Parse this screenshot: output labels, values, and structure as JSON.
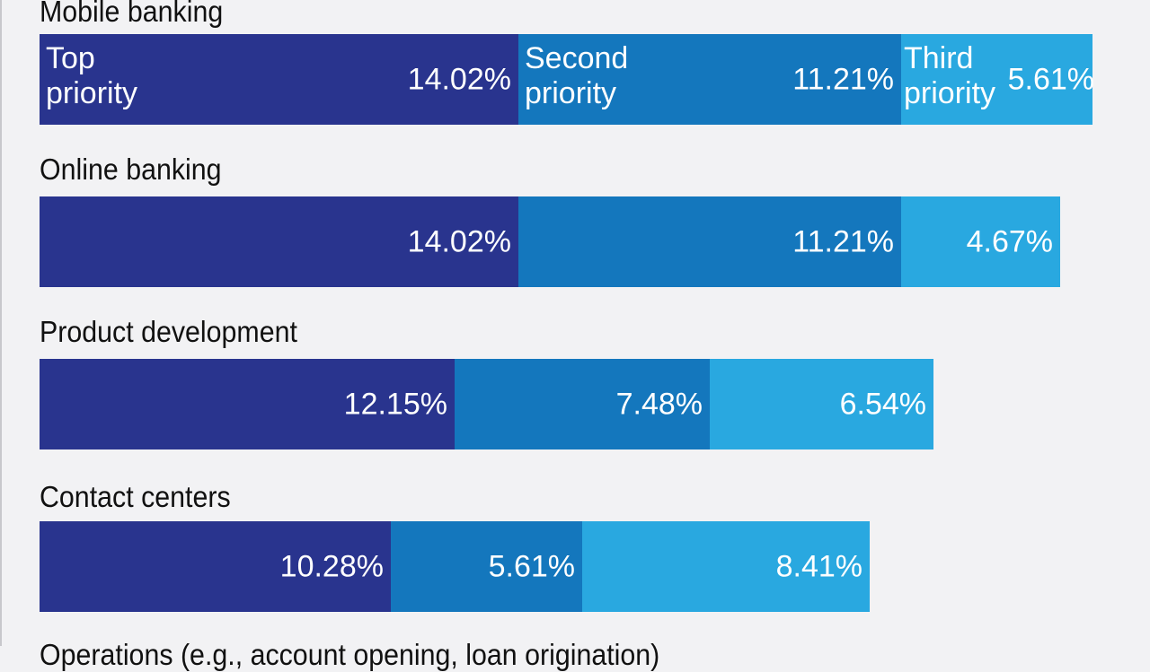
{
  "chart_data": {
    "type": "bar",
    "orientation": "horizontal",
    "stacked": true,
    "categories": [
      "Mobile banking",
      "Online banking",
      "Product development",
      "Contact centers",
      "Operations (e.g., account opening, loan origination)"
    ],
    "series": [
      {
        "name": "Top priority",
        "color": "#29348e",
        "values": [
          14.02,
          14.02,
          12.15,
          10.28,
          null
        ],
        "labels": [
          "14.02%",
          "14.02%",
          "12.15%",
          "10.28%",
          null
        ]
      },
      {
        "name": "Second priority",
        "color": "#1477bd",
        "values": [
          11.21,
          11.21,
          7.48,
          5.61,
          null
        ],
        "labels": [
          "11.21%",
          "11.21%",
          "7.48%",
          "5.61%",
          null
        ]
      },
      {
        "name": "Third priority",
        "color": "#29a8e0",
        "values": [
          5.61,
          4.67,
          6.54,
          8.41,
          null
        ],
        "labels": [
          "5.61%",
          "4.67%",
          "6.54%",
          "8.41%",
          null
        ]
      }
    ],
    "unit": "%",
    "legend": "inline in first bar",
    "grid": false
  }
}
